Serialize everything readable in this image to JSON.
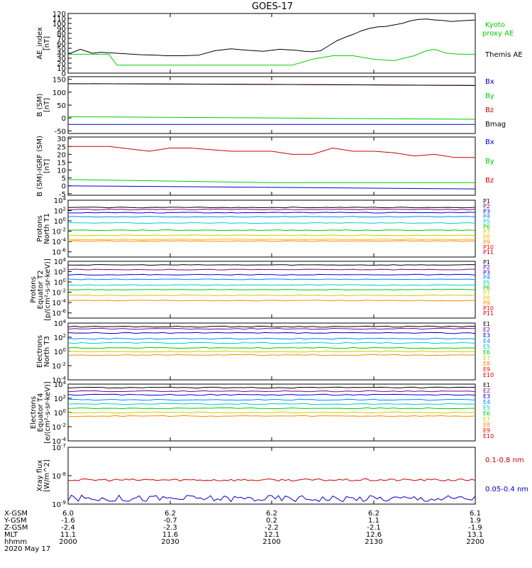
{
  "title": "GOES-17",
  "colors": {
    "black": "#000000",
    "red": "#ff0000",
    "darkred": "#cc0000",
    "blue": "#0000cc",
    "green": "#00cc00",
    "yellow": "#e6e600",
    "orange": "#ff8800"
  },
  "chart_data": [
    {
      "type": "line",
      "panel": "ae",
      "ylabel": [
        "AE_index",
        "[nT]"
      ],
      "ylim": [
        0,
        120
      ],
      "yticks": [
        "0",
        "10",
        "20",
        "30",
        "40",
        "50",
        "60",
        "70",
        "80",
        "90",
        "100",
        "110",
        "120"
      ],
      "legend": [
        {
          "name": "Kyoto proxy AE",
          "color": "#00cc00"
        },
        {
          "name": "Themis AE",
          "color": "#000000"
        }
      ],
      "series": [
        {
          "name": "Themis AE",
          "color": "#000000",
          "x": [
            0,
            3,
            6,
            8,
            12,
            18,
            22,
            24,
            28,
            32,
            36,
            40,
            44,
            48,
            50,
            52,
            54,
            56,
            58,
            60,
            62,
            64,
            66,
            68,
            70,
            72,
            74,
            76,
            78,
            80,
            82,
            84,
            86,
            88,
            90,
            92,
            94,
            96,
            98,
            100
          ],
          "y": [
            38,
            48,
            40,
            42,
            40,
            37,
            36,
            35,
            35,
            36,
            45,
            49,
            46,
            44,
            46,
            48,
            47,
            46,
            44,
            43,
            45,
            55,
            65,
            72,
            78,
            85,
            90,
            93,
            94,
            97,
            100,
            105,
            108,
            109,
            107,
            106,
            104,
            105,
            106,
            107
          ]
        },
        {
          "name": "Kyoto proxy AE",
          "color": "#00cc00",
          "x": [
            0,
            6,
            10,
            12,
            20,
            40,
            55,
            60,
            65,
            70,
            75,
            80,
            85,
            88,
            90,
            93,
            96,
            100
          ],
          "y": [
            38,
            38,
            38,
            16,
            16,
            16,
            16,
            28,
            35,
            35,
            28,
            25,
            35,
            45,
            48,
            40,
            38,
            38
          ]
        }
      ]
    },
    {
      "type": "line",
      "panel": "bsm",
      "ylabel": [
        "B (SM)",
        "[nT]"
      ],
      "ylim": [
        -60,
        160
      ],
      "yticks": [
        "-50",
        "0",
        "50",
        "100",
        "150"
      ],
      "legend": [
        {
          "name": "Bx",
          "color": "#0000cc"
        },
        {
          "name": "By",
          "color": "#00cc00"
        },
        {
          "name": "Bz",
          "color": "#cc0000"
        },
        {
          "name": "Bmag",
          "color": "#000000"
        }
      ],
      "series": [
        {
          "name": "Bz",
          "color": "#cc0000",
          "x": [
            0,
            50,
            100
          ],
          "y": [
            133,
            130,
            126
          ]
        },
        {
          "name": "Bmag",
          "color": "#000000",
          "x": [
            0,
            50,
            100
          ],
          "y": [
            133,
            130,
            126
          ]
        },
        {
          "name": "By",
          "color": "#00cc00",
          "x": [
            0,
            50,
            100
          ],
          "y": [
            5,
            0,
            -5
          ]
        },
        {
          "name": "Bx",
          "color": "#0000cc",
          "x": [
            0,
            50,
            100
          ],
          "y": [
            -25,
            -25,
            -25
          ]
        }
      ]
    },
    {
      "type": "line",
      "panel": "bdiff",
      "ylabel": [
        "B (SM)-IGRF (SM)",
        "[nT]"
      ],
      "ylim": [
        -6,
        31
      ],
      "yticks": [
        "-5",
        "0",
        "5",
        "10",
        "15",
        "20",
        "25",
        "30"
      ],
      "legend": [
        {
          "name": "Bx",
          "color": "#0000cc"
        },
        {
          "name": "By",
          "color": "#00cc00"
        },
        {
          "name": "Bz",
          "color": "#cc0000"
        }
      ],
      "series": [
        {
          "name": "Bz",
          "color": "#cc0000",
          "x": [
            0,
            10,
            20,
            25,
            30,
            40,
            50,
            55,
            60,
            65,
            70,
            75,
            80,
            85,
            90,
            95,
            100
          ],
          "y": [
            25,
            25,
            22,
            24,
            24,
            22,
            22,
            20,
            20,
            24,
            22,
            22,
            21,
            19,
            20,
            18,
            18
          ]
        },
        {
          "name": "By",
          "color": "#00cc00",
          "x": [
            0,
            50,
            100
          ],
          "y": [
            4,
            2,
            2
          ]
        },
        {
          "name": "Bx",
          "color": "#0000cc",
          "x": [
            0,
            50,
            100
          ],
          "y": [
            0,
            -1,
            -2
          ]
        }
      ]
    },
    {
      "type": "line",
      "panel": "protons_t1",
      "log": true,
      "ylabel": [
        "Protons",
        "North T1"
      ],
      "ylim_exp": [
        -7,
        4
      ],
      "yticks": [
        "10^4",
        "10^2",
        "10^0",
        "10^-2",
        "10^-4",
        "10^-6"
      ],
      "legend": [
        {
          "name": "P1",
          "color": "#000000"
        },
        {
          "name": "P2",
          "color": "#800080"
        },
        {
          "name": "P3",
          "color": "#0000cc"
        },
        {
          "name": "P4",
          "color": "#0088ff"
        },
        {
          "name": "P5",
          "color": "#00cccc"
        },
        {
          "name": "P6",
          "color": "#00cc00"
        },
        {
          "name": "P7",
          "color": "#cccc00"
        },
        {
          "name": "P8",
          "color": "#ffbb00"
        },
        {
          "name": "P9",
          "color": "#ff8800"
        },
        {
          "name": "P10",
          "color": "#ff0000"
        },
        {
          "name": "P11",
          "color": "#cc0000"
        }
      ],
      "series": [
        {
          "name": "P1",
          "color": "#000000",
          "levels": [
            2.6
          ]
        },
        {
          "name": "P2",
          "color": "#800080",
          "levels": [
            2.2
          ]
        },
        {
          "name": "P3",
          "color": "#0000cc",
          "levels": [
            1.6
          ]
        },
        {
          "name": "P4",
          "color": "#0088ff",
          "levels": [
            0.8
          ]
        },
        {
          "name": "P5",
          "color": "#00cccc",
          "levels": [
            -0.4
          ]
        },
        {
          "name": "P6",
          "color": "#00cc00",
          "levels": [
            -1.8
          ]
        },
        {
          "name": "P7",
          "color": "#cccc00",
          "levels": [
            -2.8
          ]
        },
        {
          "name": "P8",
          "color": "#ffbb00",
          "levels": [
            -3.6
          ]
        },
        {
          "name": "P9",
          "color": "#ff8800",
          "levels": [
            -3.9
          ]
        }
      ]
    },
    {
      "type": "line",
      "panel": "protons_t2",
      "log": true,
      "ylabel": [
        "Protons",
        "Equator T2",
        "[p/(cm²-s-sr-keV)]"
      ],
      "ylim_exp": [
        -7,
        4
      ],
      "yticks": [
        "10^4",
        "10^2",
        "10^0",
        "10^-2",
        "10^-4",
        "10^-6"
      ],
      "legend": [
        {
          "name": "P1",
          "color": "#000000"
        },
        {
          "name": "P2",
          "color": "#800080"
        },
        {
          "name": "P3",
          "color": "#0000cc"
        },
        {
          "name": "P4",
          "color": "#0088ff"
        },
        {
          "name": "P5",
          "color": "#00cccc"
        },
        {
          "name": "P6",
          "color": "#00cc00"
        },
        {
          "name": "P7",
          "color": "#cccc00"
        },
        {
          "name": "P8",
          "color": "#ffbb00"
        },
        {
          "name": "P9",
          "color": "#ff8800"
        },
        {
          "name": "P10",
          "color": "#ff0000"
        },
        {
          "name": "P11",
          "color": "#cc0000"
        }
      ],
      "series": [
        {
          "name": "P1",
          "color": "#000000",
          "levels": [
            3.3
          ]
        },
        {
          "name": "P2",
          "color": "#800080",
          "levels": [
            2.4
          ]
        },
        {
          "name": "P3",
          "color": "#0000cc",
          "levels": [
            1.4
          ]
        },
        {
          "name": "P4",
          "color": "#0088ff",
          "levels": [
            0.5
          ]
        },
        {
          "name": "P5",
          "color": "#00cccc",
          "levels": [
            -0.6
          ]
        },
        {
          "name": "P6",
          "color": "#00cc00",
          "levels": [
            -1.5
          ]
        },
        {
          "name": "P7",
          "color": "#cccc00",
          "levels": [
            -2.6
          ]
        },
        {
          "name": "P9",
          "color": "#ff8800",
          "levels": [
            -3.6
          ]
        }
      ]
    },
    {
      "type": "line",
      "panel": "electrons_t3",
      "log": true,
      "ylabel": [
        "Electrons",
        "North T3"
      ],
      "ylim_exp": [
        -4,
        4
      ],
      "yticks": [
        "10^4",
        "10^2",
        "10^0",
        "10^-2",
        "10^-4"
      ],
      "legend": [
        {
          "name": "E1",
          "color": "#000000"
        },
        {
          "name": "E2",
          "color": "#800080"
        },
        {
          "name": "E3",
          "color": "#0000cc"
        },
        {
          "name": "E4",
          "color": "#0088ff"
        },
        {
          "name": "E5",
          "color": "#00cccc"
        },
        {
          "name": "E6",
          "color": "#00cc00"
        },
        {
          "name": "E7",
          "color": "#cccc00"
        },
        {
          "name": "E8",
          "color": "#ff8800"
        },
        {
          "name": "E9",
          "color": "#ff0000"
        },
        {
          "name": "E10",
          "color": "#cc0000"
        }
      ],
      "series": [
        {
          "name": "E1",
          "color": "#000000",
          "levels": [
            3.5
          ]
        },
        {
          "name": "E2",
          "color": "#800080",
          "levels": [
            3.2
          ]
        },
        {
          "name": "E3",
          "color": "#0000cc",
          "levels": [
            2.6
          ]
        },
        {
          "name": "E4",
          "color": "#0088ff",
          "levels": [
            1.8
          ]
        },
        {
          "name": "E5",
          "color": "#00cccc",
          "levels": [
            1.2
          ]
        },
        {
          "name": "E6",
          "color": "#00cc00",
          "levels": [
            0.5
          ]
        },
        {
          "name": "E7",
          "color": "#cccc00",
          "levels": [
            0.0
          ]
        },
        {
          "name": "E8",
          "color": "#ff8800",
          "levels": [
            -0.5
          ]
        }
      ]
    },
    {
      "type": "line",
      "panel": "electrons_t4",
      "log": true,
      "ylabel": [
        "Electrons",
        "Equator T4",
        "[e/(cm²-s-sr-keV)]"
      ],
      "ylim_exp": [
        -4,
        4
      ],
      "yticks": [
        "10^4",
        "10^2",
        "10^0",
        "10^-2",
        "10^-4"
      ],
      "legend": [
        {
          "name": "E1",
          "color": "#000000"
        },
        {
          "name": "E2",
          "color": "#800080"
        },
        {
          "name": "E3",
          "color": "#0000cc"
        },
        {
          "name": "E4",
          "color": "#0088ff"
        },
        {
          "name": "E5",
          "color": "#00cccc"
        },
        {
          "name": "E6",
          "color": "#00cc00"
        },
        {
          "name": "E7",
          "color": "#cccc00"
        },
        {
          "name": "E8",
          "color": "#ff8800"
        },
        {
          "name": "E9",
          "color": "#ff0000"
        },
        {
          "name": "E10",
          "color": "#cc0000"
        }
      ],
      "series": [
        {
          "name": "E1",
          "color": "#000000",
          "levels": [
            3.5
          ]
        },
        {
          "name": "E2",
          "color": "#800080",
          "levels": [
            3.0
          ]
        },
        {
          "name": "E3",
          "color": "#0000cc",
          "levels": [
            2.5
          ]
        },
        {
          "name": "E4",
          "color": "#0088ff",
          "levels": [
            1.8
          ]
        },
        {
          "name": "E5",
          "color": "#00cccc",
          "levels": [
            1.2
          ]
        },
        {
          "name": "E6",
          "color": "#00cc00",
          "levels": [
            0.6
          ]
        },
        {
          "name": "E7",
          "color": "#cccc00",
          "levels": [
            0.0
          ]
        },
        {
          "name": "E8",
          "color": "#ff8800",
          "levels": [
            -0.5
          ]
        }
      ]
    },
    {
      "type": "line",
      "panel": "xray",
      "log": true,
      "ylabel": [
        "Xray flux",
        "[W/m^2]"
      ],
      "ylim_exp": [
        -9,
        -7
      ],
      "yticks": [
        "10^-7",
        "10^-8",
        "10^-9"
      ],
      "legend": [
        {
          "name": "0.1-0.8 nm",
          "color": "#cc0000"
        },
        {
          "name": "0.05-0.4 nm",
          "color": "#0000cc"
        }
      ],
      "series": [
        {
          "name": "0.1-0.8 nm",
          "color": "#cc0000",
          "level": -8.15,
          "jitter": 0.04
        },
        {
          "name": "0.05-0.4 nm",
          "color": "#0000cc",
          "level": -8.8,
          "jitter": 0.12
        }
      ]
    }
  ],
  "x_axis": {
    "row_labels": [
      "X-GSM",
      "Y-GSM",
      "Z-GSM",
      "MLT",
      "hhmm",
      "2020 May 17"
    ],
    "columns": [
      [
        "6.0",
        "-1.6",
        "-2.4",
        "11.1",
        "2000"
      ],
      [
        "6.2",
        "-0.7",
        "-2.3",
        "11.6",
        "2030"
      ],
      [
        "6.2",
        "0.2",
        "-2.2",
        "12.1",
        "2100"
      ],
      [
        "6.2",
        "1.1",
        "-2.1",
        "12.6",
        "2130"
      ],
      [
        "6.1",
        "1.9",
        "-1.9",
        "13.1",
        "2200"
      ]
    ]
  }
}
